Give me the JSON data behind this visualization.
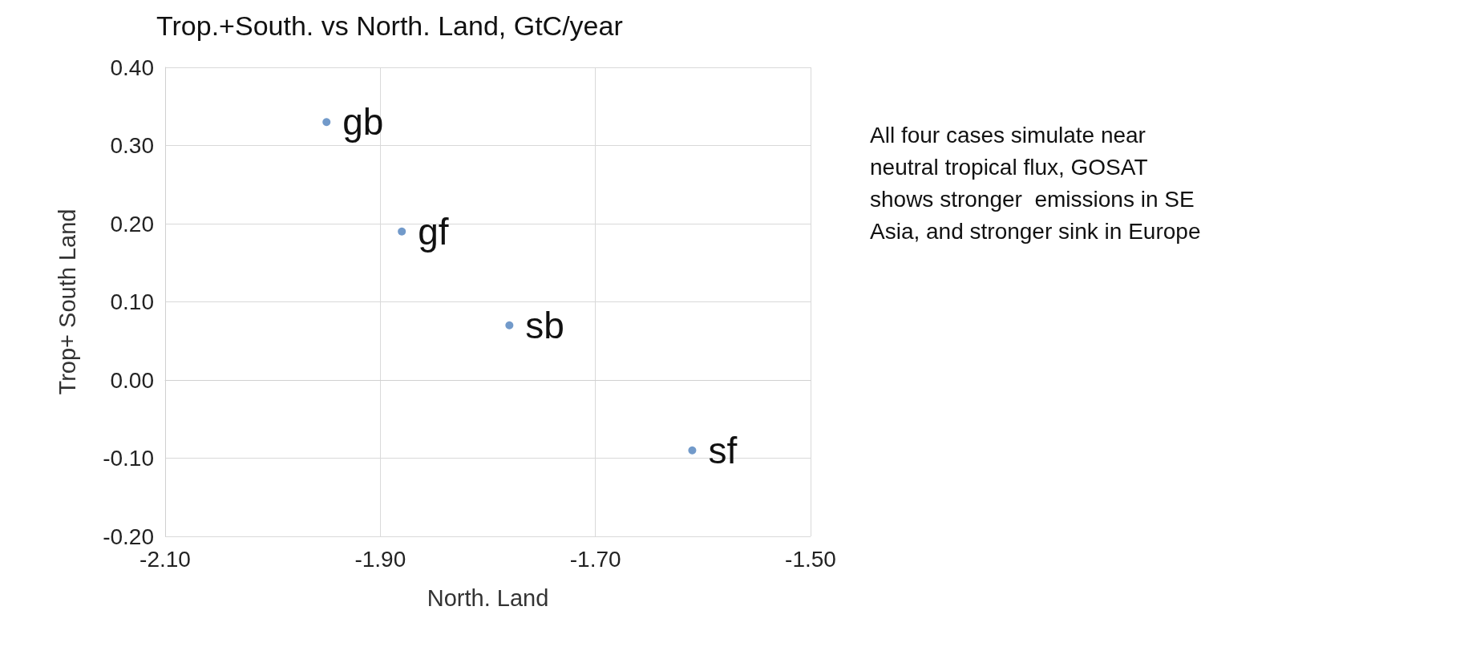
{
  "chart_data": {
    "type": "scatter",
    "title": "Trop.+South. vs North. Land, GtC/year",
    "xlabel": "North. Land",
    "ylabel": "Trop+ South Land",
    "x": [
      -1.95,
      -1.88,
      -1.78,
      -1.61
    ],
    "series": [
      {
        "color": "#4f81bd",
        "values": [
          0.33,
          0.19,
          0.07,
          -0.09
        ]
      }
    ],
    "xlim": [
      -2.1,
      -1.5
    ],
    "xticks": [
      {
        "value": -2.1,
        "label": "-2.10"
      },
      {
        "value": -1.9,
        "label": "-1.90"
      },
      {
        "value": -1.7,
        "label": "-1.70"
      },
      {
        "value": -1.5,
        "label": "-1.50"
      }
    ],
    "ylim": [
      -0.2,
      0.4
    ],
    "yticks": [
      {
        "value": -0.2,
        "label": "-0.20"
      },
      {
        "value": -0.1,
        "label": "-0.10"
      },
      {
        "value": 0,
        "label": "0.00"
      },
      {
        "value": 0.1,
        "label": "0.10"
      },
      {
        "value": 0.2,
        "label": "0.20"
      },
      {
        "value": 0.3,
        "label": "0.30"
      },
      {
        "value": 0.4,
        "label": "0.40"
      }
    ],
    "grid": true,
    "marker": "circle",
    "annotations": [
      {
        "text": "gb",
        "x": -1.95,
        "y": 0.33
      },
      {
        "text": "gf",
        "x": -1.88,
        "y": 0.19
      },
      {
        "text": "sb",
        "x": -1.78,
        "y": 0.07
      },
      {
        "text": "sf",
        "x": -1.61,
        "y": -0.09
      },
      "All four cases simulate near\nneutral tropical flux, GOSAT\nshows stronger  emissions in SE\nAsia, and stronger sink in Europe"
    ]
  }
}
